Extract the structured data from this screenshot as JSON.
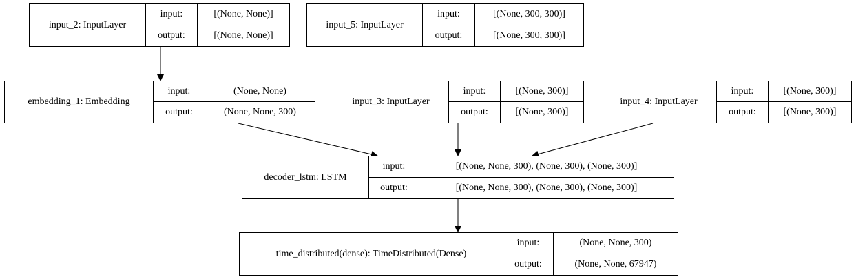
{
  "nodes": [
    {
      "id": "input_2",
      "name": "input_2: InputLayer",
      "input_label": "input:",
      "output_label": "output:",
      "input": "[(None, None)]",
      "output": "[(None, None)]"
    },
    {
      "id": "input_5",
      "name": "input_5: InputLayer",
      "input_label": "input:",
      "output_label": "output:",
      "input": "[(None, 300, 300)]",
      "output": "[(None, 300, 300)]"
    },
    {
      "id": "embedding_1",
      "name": "embedding_1: Embedding",
      "input_label": "input:",
      "output_label": "output:",
      "input": "(None, None)",
      "output": "(None, None, 300)"
    },
    {
      "id": "input_3",
      "name": "input_3: InputLayer",
      "input_label": "input:",
      "output_label": "output:",
      "input": "[(None, 300)]",
      "output": "[(None, 300)]"
    },
    {
      "id": "input_4",
      "name": "input_4: InputLayer",
      "input_label": "input:",
      "output_label": "output:",
      "input": "[(None, 300)]",
      "output": "[(None, 300)]"
    },
    {
      "id": "decoder_lstm",
      "name": "decoder_lstm: LSTM",
      "input_label": "input:",
      "output_label": "output:",
      "input": "[(None, None, 300), (None, 300), (None, 300)]",
      "output": "[(None, None, 300), (None, 300), (None, 300)]"
    },
    {
      "id": "time_distributed",
      "name": "time_distributed(dense): TimeDistributed(Dense)",
      "input_label": "input:",
      "output_label": "output:",
      "input": "(None, None, 300)",
      "output": "(None, None, 67947)"
    }
  ],
  "edges": [
    {
      "from": "input_2",
      "to": "embedding_1"
    },
    {
      "from": "embedding_1",
      "to": "decoder_lstm"
    },
    {
      "from": "input_3",
      "to": "decoder_lstm"
    },
    {
      "from": "input_4",
      "to": "decoder_lstm"
    },
    {
      "from": "decoder_lstm",
      "to": "time_distributed"
    }
  ]
}
